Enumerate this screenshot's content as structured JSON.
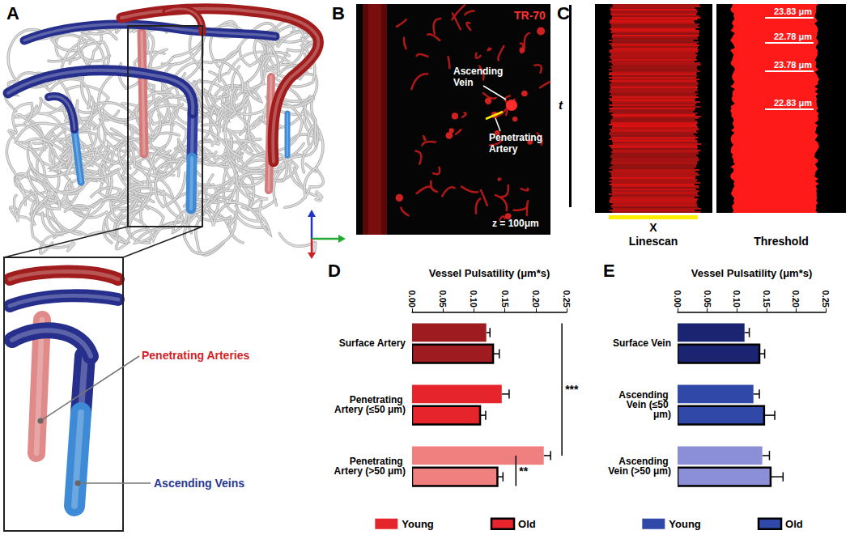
{
  "panels": {
    "A": {
      "label": "A",
      "annotations": [
        "Penetrating Arteries",
        "Ascending Veins"
      ]
    },
    "B": {
      "label": "B",
      "channel": "TR-70",
      "annotations": [
        "Ascending Vein",
        "Penetrating Artery"
      ],
      "depth": "z = 100μm"
    },
    "C": {
      "label": "C",
      "time_axis": "t",
      "space_axis": "X",
      "images": [
        "Linescan",
        "Threshold"
      ],
      "measurements": [
        "23.83 μm",
        "22.78 μm",
        "23.78 μm",
        "22.83 μm"
      ]
    }
  },
  "chart_data": [
    {
      "panel": "D",
      "type": "bar",
      "orientation": "horizontal",
      "xlabel": "Vessel Pulsatility (μm*s)",
      "categories": [
        "Surface Artery",
        "Penetrating Artery (≤50 μm)",
        "Penetrating Artery (>50 μm)"
      ],
      "series": [
        {
          "name": "Young",
          "color": "#e5242b",
          "colors": [
            "#9e1b20",
            "#e5242b",
            "#f08080"
          ],
          "values": [
            0.12,
            0.145,
            0.213
          ],
          "errors": [
            0.006,
            0.012,
            0.011
          ],
          "marker": "plain"
        },
        {
          "name": "Old",
          "color": "#e5242b",
          "colors": [
            "#9e1b20",
            "#e5242b",
            "#f08080"
          ],
          "values": [
            0.131,
            0.11,
            0.138
          ],
          "errors": [
            0.01,
            0.009,
            0.009
          ],
          "marker": "outlined"
        }
      ],
      "xlim": [
        0,
        0.25
      ],
      "xticks": [
        {
          "value": 0,
          "label": "0.00"
        },
        0.05,
        {
          "value": 0.1,
          "label": "0.10"
        },
        0.15,
        {
          "value": 0.2,
          "label": "0.20"
        },
        0.25
      ],
      "grid": false,
      "legend": "bottom",
      "annotations": [
        {
          "label": "***",
          "between": [
            [
              "Surface Artery",
              "Young"
            ],
            [
              "Penetrating Artery (>50 μm)",
              "Young"
            ]
          ]
        },
        {
          "label": "**",
          "between": [
            [
              "Penetrating Artery (>50 μm)",
              "Young"
            ],
            [
              "Penetrating Artery (>50 μm)",
              "Old"
            ]
          ]
        }
      ]
    },
    {
      "panel": "E",
      "type": "bar",
      "orientation": "horizontal",
      "xlabel": "Vessel Pulsatility (μm*s)",
      "categories": [
        "Surface Vein",
        "Ascending Vein (≤50 μm)",
        "Ascending Vein (>50 μm)"
      ],
      "series": [
        {
          "name": "Young",
          "color": "#3048a8",
          "colors": [
            "#1b2470",
            "#3048a8",
            "#8a8fd8"
          ],
          "values": [
            0.113,
            0.128,
            0.143
          ],
          "errors": [
            0.008,
            0.01,
            0.012
          ],
          "marker": "plain"
        },
        {
          "name": "Old",
          "color": "#3048a8",
          "colors": [
            "#1b2470",
            "#3048a8",
            "#8a8fd8"
          ],
          "values": [
            0.138,
            0.146,
            0.157
          ],
          "errors": [
            0.009,
            0.018,
            0.021
          ],
          "marker": "outlined"
        }
      ],
      "xlim": [
        0,
        0.25
      ],
      "xticks": [
        {
          "value": 0,
          "label": "0.00"
        },
        0.05,
        {
          "value": 0.1,
          "label": "0.10"
        },
        0.15,
        {
          "value": 0.2,
          "label": "0.20"
        },
        0.25
      ],
      "grid": false,
      "legend": "bottom"
    }
  ]
}
